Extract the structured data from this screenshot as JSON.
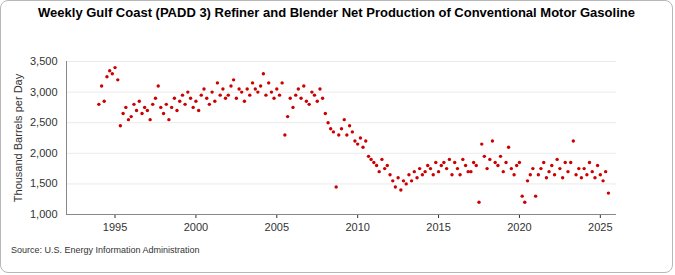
{
  "chart_data": {
    "type": "scatter",
    "title": "Weekly Gulf Coast (PADD 3) Refiner and Blender Net Production of Conventional Motor Gasoline",
    "y_label": "Thousand Barrels per Day",
    "source": "Source: U.S. Energy Information Administration",
    "color": "#cc0000",
    "marker": "circle",
    "grid": true,
    "xlim": [
      1992,
      2026
    ],
    "xticks": [
      1995,
      2000,
      2005,
      2010,
      2015,
      2020,
      2025
    ],
    "ylim": [
      1000,
      3500
    ],
    "yticks": [
      {
        "value": 1000,
        "label": "1,000"
      },
      {
        "value": 1500,
        "label": "1,500"
      },
      {
        "value": 2000,
        "label": "2,000"
      },
      {
        "value": 2500,
        "label": "2,500"
      },
      {
        "value": 3000,
        "label": "3,000"
      },
      {
        "value": 3500,
        "label": "3,500"
      }
    ],
    "x": [
      1994,
      1994.17,
      1994.33,
      1994.5,
      1994.67,
      1994.83,
      1995,
      1995.17,
      1995.33,
      1995.5,
      1995.67,
      1995.83,
      1996,
      1996.17,
      1996.33,
      1996.5,
      1996.67,
      1996.83,
      1997,
      1997.17,
      1997.33,
      1997.5,
      1997.67,
      1997.83,
      1998,
      1998.17,
      1998.33,
      1998.5,
      1998.67,
      1998.83,
      1999,
      1999.17,
      1999.33,
      1999.5,
      1999.67,
      1999.83,
      2000,
      2000.17,
      2000.33,
      2000.5,
      2000.67,
      2000.83,
      2001,
      2001.17,
      2001.33,
      2001.5,
      2001.67,
      2001.83,
      2002,
      2002.17,
      2002.33,
      2002.5,
      2002.67,
      2002.83,
      2003,
      2003.17,
      2003.33,
      2003.5,
      2003.67,
      2003.83,
      2004,
      2004.17,
      2004.33,
      2004.5,
      2004.67,
      2004.83,
      2005,
      2005.17,
      2005.33,
      2005.5,
      2005.67,
      2005.83,
      2006,
      2006.17,
      2006.33,
      2006.5,
      2006.67,
      2006.83,
      2007,
      2007.17,
      2007.33,
      2007.5,
      2007.67,
      2007.83,
      2008,
      2008.17,
      2008.33,
      2008.5,
      2008.67,
      2008.83,
      2009,
      2009.17,
      2009.33,
      2009.5,
      2009.67,
      2009.83,
      2010,
      2010.17,
      2010.33,
      2010.5,
      2010.67,
      2010.83,
      2011,
      2011.17,
      2011.33,
      2011.5,
      2011.67,
      2011.83,
      2012,
      2012.17,
      2012.33,
      2012.5,
      2012.67,
      2012.83,
      2013,
      2013.17,
      2013.33,
      2013.5,
      2013.67,
      2013.83,
      2014,
      2014.17,
      2014.33,
      2014.5,
      2014.67,
      2014.83,
      2015,
      2015.17,
      2015.33,
      2015.5,
      2015.67,
      2015.83,
      2016,
      2016.17,
      2016.33,
      2016.5,
      2016.67,
      2016.83,
      2017,
      2017.17,
      2017.33,
      2017.5,
      2017.67,
      2017.83,
      2018,
      2018.17,
      2018.33,
      2018.5,
      2018.67,
      2018.83,
      2019,
      2019.17,
      2019.33,
      2019.5,
      2019.67,
      2019.83,
      2020,
      2020.17,
      2020.33,
      2020.5,
      2020.67,
      2020.83,
      2021,
      2021.17,
      2021.33,
      2021.5,
      2021.67,
      2021.83,
      2022,
      2022.17,
      2022.33,
      2022.5,
      2022.67,
      2022.83,
      2023,
      2023.17,
      2023.33,
      2023.5,
      2023.67,
      2023.83,
      2024,
      2024.17,
      2024.33,
      2024.5,
      2024.67,
      2024.83,
      2025,
      2025.17,
      2025.33,
      2025.5
    ],
    "values": [
      2800,
      3100,
      2850,
      3250,
      3350,
      3300,
      3400,
      3200,
      2450,
      2650,
      2750,
      2550,
      2600,
      2800,
      2700,
      2850,
      2650,
      2750,
      2700,
      2550,
      2800,
      2900,
      3100,
      2750,
      2650,
      2800,
      2550,
      2750,
      2900,
      2700,
      2850,
      2950,
      2800,
      3000,
      2900,
      2750,
      2850,
      2700,
      2950,
      3050,
      2900,
      2800,
      3000,
      2850,
      3150,
      2950,
      3050,
      2900,
      2950,
      3100,
      3200,
      2900,
      3050,
      3000,
      2850,
      3050,
      2950,
      3150,
      3050,
      3000,
      3100,
      3300,
      2950,
      3150,
      3000,
      2900,
      3050,
      2950,
      3150,
      2300,
      2600,
      2900,
      2750,
      2950,
      3050,
      2900,
      3100,
      2850,
      2800,
      3000,
      2950,
      2850,
      3050,
      2900,
      2650,
      2500,
      2400,
      2350,
      1450,
      2300,
      2400,
      2550,
      2300,
      2450,
      2350,
      2200,
      2150,
      2250,
      2100,
      2200,
      1950,
      1900,
      1850,
      1800,
      1700,
      1900,
      1750,
      1800,
      1650,
      1550,
      1450,
      1600,
      1400,
      1550,
      1500,
      1650,
      1550,
      1700,
      1600,
      1750,
      1650,
      1700,
      1800,
      1750,
      1650,
      1850,
      1700,
      1800,
      1850,
      1750,
      1900,
      1650,
      1850,
      1750,
      1650,
      1900,
      1800,
      1700,
      1700,
      1850,
      1800,
      1200,
      2150,
      1950,
      1750,
      1900,
      2200,
      1850,
      1800,
      1950,
      1700,
      1850,
      2100,
      1750,
      1650,
      1800,
      1850,
      1300,
      1200,
      1550,
      1650,
      1750,
      1300,
      1650,
      1750,
      1850,
      1600,
      1700,
      1800,
      1650,
      1900,
      1750,
      1600,
      1850,
      1700,
      1850,
      2200,
      1650,
      1750,
      1600,
      1750,
      1650,
      1850,
      1700,
      1600,
      1800,
      1650,
      1550,
      1700,
      1350
    ]
  }
}
